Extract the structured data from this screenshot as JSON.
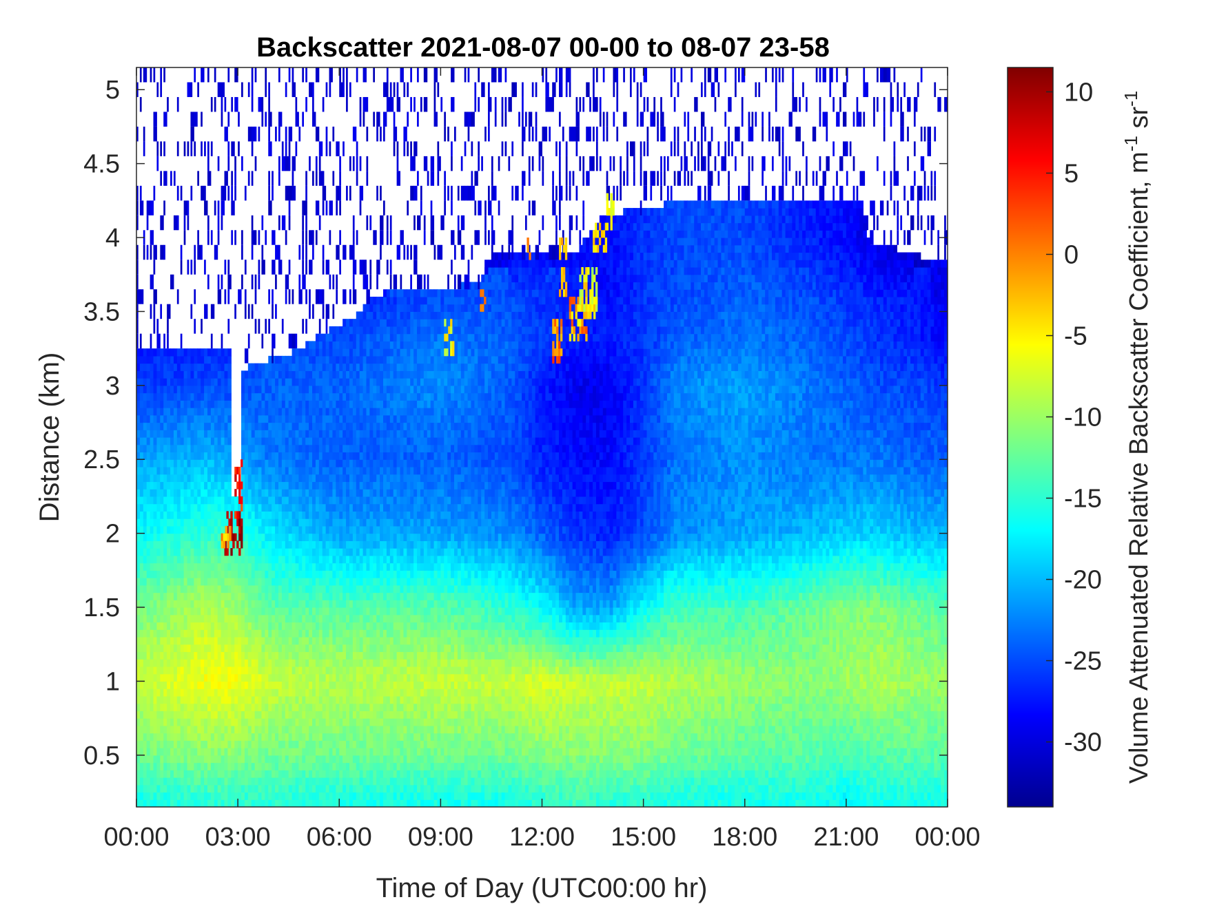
{
  "chart_data": {
    "type": "heatmap",
    "title": "Backscatter 2021-08-07 00-00 to 08-07 23-58",
    "xlabel": "Time of Day (UTC00:00 hr)",
    "ylabel": "Distance (km)",
    "xlim": [
      0,
      24
    ],
    "ylim": [
      0.15,
      5.15
    ],
    "x_ticks": [
      {
        "value": 0,
        "label": "00:00"
      },
      {
        "value": 3,
        "label": "03:00"
      },
      {
        "value": 6,
        "label": "06:00"
      },
      {
        "value": 9,
        "label": "09:00"
      },
      {
        "value": 12,
        "label": "12:00"
      },
      {
        "value": 15,
        "label": "15:00"
      },
      {
        "value": 18,
        "label": "18:00"
      },
      {
        "value": 21,
        "label": "21:00"
      },
      {
        "value": 24,
        "label": "00:00"
      }
    ],
    "y_ticks": [
      {
        "value": 0.5,
        "label": "0.5"
      },
      {
        "value": 1,
        "label": "1"
      },
      {
        "value": 1.5,
        "label": "1.5"
      },
      {
        "value": 2,
        "label": "2"
      },
      {
        "value": 2.5,
        "label": "2.5"
      },
      {
        "value": 3,
        "label": "3"
      },
      {
        "value": 3.5,
        "label": "3.5"
      },
      {
        "value": 4,
        "label": "4"
      },
      {
        "value": 4.5,
        "label": "4.5"
      },
      {
        "value": 5,
        "label": "5"
      }
    ],
    "colorbar": {
      "label_main": "Volume Attenuated Relative Backscatter Coefficient, m",
      "label_sup1": "-1",
      "label_mid": " sr",
      "label_sup2": "-1",
      "range": [
        -34,
        11.5
      ],
      "colormap": "jet",
      "ticks": [
        {
          "value": 10,
          "label": "10"
        },
        {
          "value": 5,
          "label": "5"
        },
        {
          "value": 0,
          "label": "0"
        },
        {
          "value": -5,
          "label": "-5"
        },
        {
          "value": -10,
          "label": "-10"
        },
        {
          "value": -15,
          "label": "-15"
        },
        {
          "value": -20,
          "label": "-20"
        },
        {
          "value": -25,
          "label": "-25"
        },
        {
          "value": -30,
          "label": "-30"
        }
      ]
    },
    "grid": false,
    "field": {
      "time_hours": [
        0,
        2,
        3,
        4,
        6,
        9,
        11,
        12,
        13,
        14,
        15,
        16,
        18,
        20,
        21,
        22,
        23,
        24
      ],
      "distance_km": [
        0.2,
        0.5,
        1.0,
        1.5,
        2.0,
        2.5,
        3.0,
        3.3,
        3.6,
        4.0
      ],
      "values": [
        [
          -16,
          -15,
          -15,
          -15,
          -16,
          -16,
          -16,
          -15,
          -14,
          -15,
          -15,
          -16,
          -16,
          -16,
          -17,
          -16,
          -16,
          -16
        ],
        [
          -12,
          -11,
          -11,
          -12,
          -12,
          -12,
          -12,
          -11,
          -11,
          -11,
          -11,
          -12,
          -13,
          -13,
          -14,
          -13,
          -13,
          -13
        ],
        [
          -8,
          -6,
          -6,
          -8,
          -9,
          -8,
          -8,
          -7,
          -8,
          -8,
          -8,
          -9,
          -10,
          -11,
          -10,
          -9,
          -10,
          -10
        ],
        [
          -12,
          -9,
          -10,
          -13,
          -13,
          -13,
          -15,
          -17,
          -21,
          -21,
          -17,
          -14,
          -14,
          -12,
          -11,
          -11,
          -12,
          -13
        ],
        [
          -17,
          -15,
          -15,
          -18,
          -21,
          -21,
          -22,
          -24,
          -26,
          -27,
          -25,
          -22,
          -21,
          -20,
          -19,
          -19,
          -20,
          -20
        ],
        [
          -21,
          -20,
          -21,
          -23,
          -24,
          -24,
          -25,
          -27,
          -28,
          -28,
          -26,
          -23,
          -22,
          -23,
          -23,
          -23,
          -24,
          -24
        ],
        [
          -26,
          -25,
          -25,
          -24,
          -24,
          -22,
          -24,
          -27,
          -29,
          -29,
          -26,
          -22,
          -21,
          -23,
          -24,
          -25,
          -25,
          -26
        ],
        [
          -27,
          -27,
          -26,
          -25,
          -25,
          -23,
          -24,
          -26,
          -27,
          -27,
          -26,
          -24,
          -23,
          -24,
          -25,
          -26,
          -27,
          -28
        ],
        [
          null,
          null,
          null,
          null,
          -27,
          -25,
          -25,
          -26,
          -27,
          -28,
          -26,
          -25,
          -24,
          -25,
          -26,
          -27,
          -27,
          -29
        ],
        [
          null,
          null,
          null,
          null,
          null,
          null,
          -29,
          -28,
          null,
          -28,
          -26,
          -25,
          -25,
          -27,
          -28,
          -30,
          -31,
          null
        ]
      ]
    }
  }
}
